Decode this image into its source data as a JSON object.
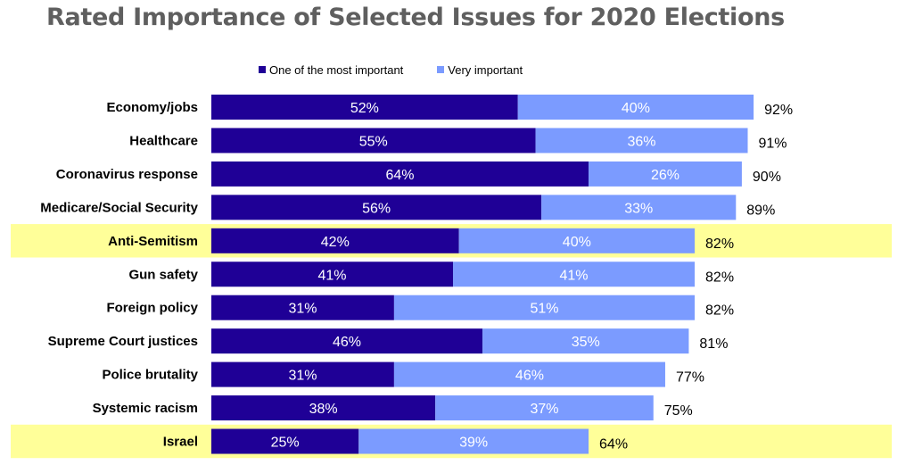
{
  "chart_data": {
    "type": "bar",
    "orientation": "horizontal",
    "stacked": true,
    "title": "Rated Importance of Selected Issues for 2020 Elections",
    "categories": [
      "Economy/jobs",
      "Healthcare",
      "Coronavirus response",
      "Medicare/Social Security",
      "Anti-Semitism",
      "Gun safety",
      "Foreign policy",
      "Supreme Court justices",
      "Police brutality",
      "Systemic racism",
      "Israel"
    ],
    "series": [
      {
        "name": "One of the most important",
        "color": "#1f0096",
        "values": [
          52,
          55,
          64,
          56,
          42,
          41,
          31,
          46,
          31,
          38,
          25
        ]
      },
      {
        "name": "Very important",
        "color": "#7b9bff",
        "values": [
          40,
          36,
          26,
          33,
          40,
          41,
          51,
          35,
          46,
          37,
          39
        ]
      }
    ],
    "totals": [
      92,
      91,
      90,
      89,
      82,
      82,
      82,
      81,
      77,
      75,
      64
    ],
    "value_suffix": "%",
    "highlighted_categories": [
      "Anti-Semitism",
      "Israel"
    ],
    "highlight_color": "#ffff99",
    "legend_position": "top",
    "grid": false
  }
}
